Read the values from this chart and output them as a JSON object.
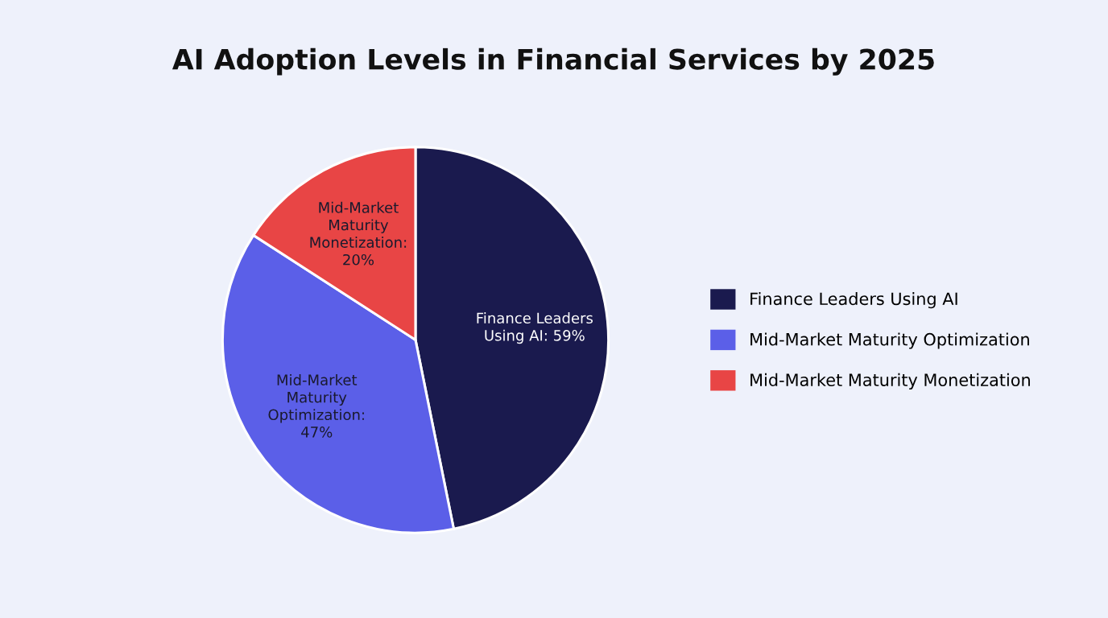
{
  "chart_data": {
    "type": "pie",
    "title": "AI Adoption Levels in Financial Services by 2025",
    "categories": [
      "Finance Leaders Using AI",
      "Mid-Market Maturity Optimization",
      "Mid-Market Maturity Monetization"
    ],
    "values": [
      59,
      47,
      20
    ],
    "colors": [
      "#1a1a4e",
      "#5b5fe8",
      "#e84545"
    ],
    "value_labels": [
      "Finance Leaders\nUsing AI: 59%",
      "Mid-Market\nMaturity\nOptimization:\n47%",
      "Mid-Market\nMaturity\nMonetization:\n20%"
    ],
    "legend": "right"
  }
}
